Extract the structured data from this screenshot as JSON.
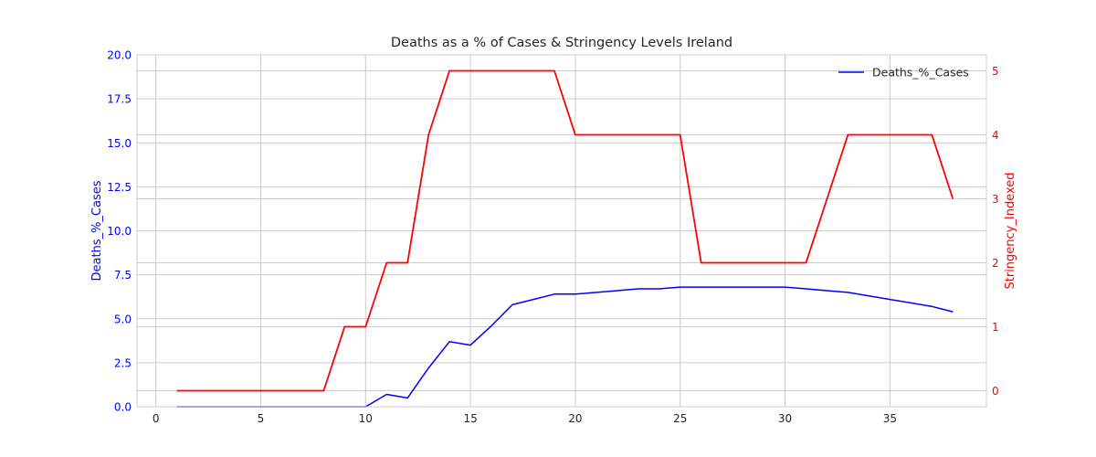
{
  "chart_data": {
    "type": "line",
    "title": "Deaths as a % of Cases & Stringency Levels Ireland",
    "xlabel": "",
    "xlim": [
      -0.9,
      39.6
    ],
    "x_ticks": [
      0,
      5,
      10,
      15,
      20,
      25,
      30,
      35
    ],
    "grid": true,
    "legend": {
      "position": "top-right",
      "entries": [
        "Deaths_%_Cases"
      ]
    },
    "left_axis": {
      "label": "Deaths_%_Cases",
      "color": "#0000ff",
      "ylim": [
        0,
        20
      ],
      "ticks": [
        "0.0",
        "2.5",
        "5.0",
        "7.5",
        "10.0",
        "12.5",
        "15.0",
        "17.5",
        "20.0"
      ]
    },
    "right_axis": {
      "label": "Stringency_Indexed",
      "color": "#ff0000",
      "ylim": [
        -0.25,
        5.25
      ],
      "ticks": [
        "0",
        "1",
        "2",
        "3",
        "4",
        "5"
      ]
    },
    "series": [
      {
        "name": "Deaths_%_Cases",
        "axis": "left",
        "color": "#0000ff",
        "x": [
          1,
          2,
          3,
          4,
          5,
          6,
          7,
          8,
          9,
          10,
          11,
          12,
          13,
          14,
          15,
          16,
          17,
          18,
          19,
          20,
          21,
          22,
          23,
          24,
          25,
          26,
          27,
          28,
          29,
          30,
          31,
          32,
          33,
          34,
          35,
          36,
          37,
          38
        ],
        "y": [
          0,
          0,
          0,
          0,
          0,
          0,
          0,
          0,
          0,
          0,
          0.7,
          0.5,
          2.2,
          3.7,
          3.5,
          4.6,
          5.8,
          6.1,
          6.4,
          6.4,
          6.5,
          6.6,
          6.7,
          6.7,
          6.8,
          6.8,
          6.8,
          6.8,
          6.8,
          6.8,
          6.7,
          6.6,
          6.5,
          6.3,
          6.1,
          5.9,
          5.7,
          5.4
        ]
      },
      {
        "axis": "right",
        "color": "#ff0000",
        "x": [
          1,
          2,
          3,
          4,
          5,
          6,
          7,
          8,
          9,
          10,
          11,
          12,
          13,
          14,
          15,
          16,
          17,
          18,
          19,
          20,
          21,
          22,
          23,
          24,
          25,
          26,
          27,
          28,
          29,
          30,
          31,
          32,
          33,
          34,
          35,
          36,
          37,
          38
        ],
        "y": [
          0,
          0,
          0,
          0,
          0,
          0,
          0,
          0,
          1,
          1,
          2,
          2,
          4,
          5,
          5,
          5,
          5,
          5,
          5,
          4,
          4,
          4,
          4,
          4,
          4,
          2,
          2,
          2,
          2,
          2,
          2,
          3,
          4,
          4,
          4,
          4,
          4,
          3
        ]
      }
    ]
  }
}
